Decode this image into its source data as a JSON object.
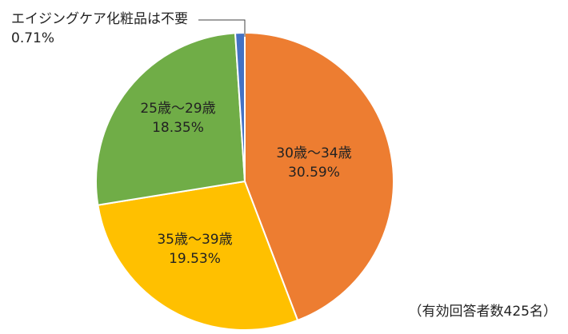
{
  "chart_data": {
    "type": "pie",
    "title": "",
    "note": "（有効回答者数425名）",
    "start_angle_deg": 0,
    "direction": "clockwise",
    "slices": [
      {
        "label": "30歳～34歳",
        "value": 30.59,
        "value_label": "30.59%",
        "color": "#ED7D31"
      },
      {
        "label": "35歳～39歳",
        "value": 19.53,
        "value_label": "19.53%",
        "color": "#FFC000"
      },
      {
        "label": "25歳～29歳",
        "value": 18.35,
        "value_label": "18.35%",
        "color": "#70AD47"
      },
      {
        "label": "エイジングケア化粧品は不要",
        "value": 0.71,
        "value_label": "0.71%",
        "color": "#4472C4"
      }
    ],
    "legend": "none",
    "data_labels": "inside"
  },
  "labels": {
    "orange_name": "30歳～34歳",
    "orange_pct": "30.59%",
    "yellow_name": "35歳～39歳",
    "yellow_pct": "19.53%",
    "green_name": "25歳～29歳",
    "green_pct": "18.35%",
    "callout_name": "エイジングケア化粧品は不要",
    "callout_pct": "0.71%"
  },
  "note": "（有効回答者数425名）"
}
